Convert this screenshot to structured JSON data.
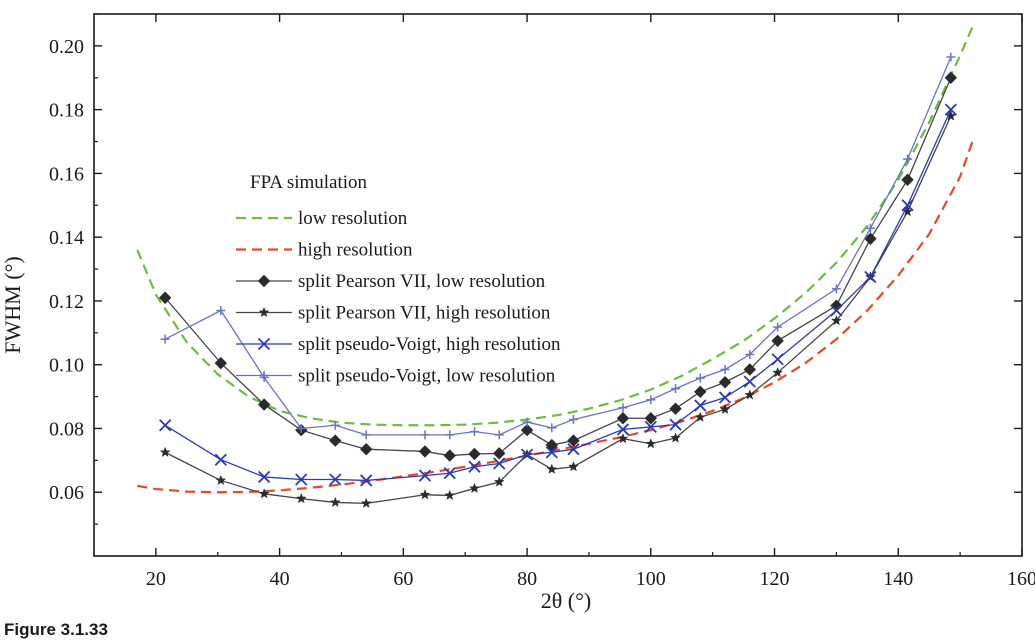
{
  "caption": "Figure 3.1.33",
  "chart_data": {
    "type": "line",
    "xlabel": "2θ (°)",
    "ylabel": "FWHM (°)",
    "xlim": [
      10,
      160
    ],
    "ylim": [
      0.04,
      0.21
    ],
    "xticks": [
      20,
      40,
      60,
      80,
      100,
      120,
      140,
      160
    ],
    "yticks": [
      0.06,
      0.08,
      0.1,
      0.12,
      0.14,
      0.16,
      0.18,
      0.2
    ],
    "ytick_labels": [
      "0.06",
      "0.08",
      "0.10",
      "0.12",
      "0.14",
      "0.16",
      "0.18",
      "0.20"
    ],
    "grid": false,
    "legend_title": "FPA simulation",
    "legend_position": "top-left",
    "series": [
      {
        "name": "low resolution",
        "style": "dashed",
        "color": "#6dbb3f",
        "marker": "none",
        "x": [
          17,
          20,
          25,
          30,
          35,
          40,
          45,
          50,
          55,
          60,
          65,
          70,
          75,
          80,
          85,
          90,
          95,
          100,
          105,
          110,
          115,
          120,
          125,
          130,
          135,
          140,
          145,
          150,
          152
        ],
        "y": [
          0.136,
          0.122,
          0.107,
          0.097,
          0.09,
          0.0855,
          0.0832,
          0.0818,
          0.0812,
          0.081,
          0.081,
          0.0812,
          0.0818,
          0.0828,
          0.0842,
          0.0862,
          0.0888,
          0.0922,
          0.0965,
          0.1018,
          0.1075,
          0.1145,
          0.1225,
          0.132,
          0.1435,
          0.158,
          0.176,
          0.197,
          0.206
        ]
      },
      {
        "name": "high resolution",
        "style": "dashed",
        "color": "#e8472b",
        "marker": "none",
        "x": [
          17,
          20,
          25,
          30,
          35,
          40,
          45,
          50,
          55,
          60,
          65,
          70,
          75,
          80,
          85,
          90,
          95,
          100,
          105,
          110,
          115,
          120,
          125,
          130,
          135,
          140,
          145,
          150,
          152
        ],
        "y": [
          0.062,
          0.061,
          0.0602,
          0.06,
          0.0601,
          0.0606,
          0.0614,
          0.0624,
          0.0636,
          0.065,
          0.0664,
          0.068,
          0.0697,
          0.0715,
          0.0733,
          0.0752,
          0.0772,
          0.0795,
          0.0822,
          0.0855,
          0.0895,
          0.0945,
          0.1005,
          0.108,
          0.117,
          0.128,
          0.141,
          0.159,
          0.17
        ]
      },
      {
        "name": "split Pearson VII, low resolution",
        "style": "solid",
        "color": "#444444",
        "marker": "diamond",
        "x": [
          21.5,
          30.5,
          37.5,
          43.5,
          49,
          54,
          63.5,
          67.5,
          71.5,
          75.5,
          80,
          84,
          87.5,
          95.5,
          100,
          104,
          108,
          112,
          116,
          120.5,
          130,
          135.5,
          141.5,
          148.5
        ],
        "y": [
          0.121,
          0.1005,
          0.0875,
          0.0795,
          0.0762,
          0.0735,
          0.0728,
          0.0715,
          0.072,
          0.0722,
          0.0795,
          0.0748,
          0.0762,
          0.0832,
          0.0832,
          0.0862,
          0.0915,
          0.0945,
          0.0985,
          0.1075,
          0.1185,
          0.1395,
          0.158,
          0.19
        ]
      },
      {
        "name": "split Pearson VII, high resolution",
        "style": "solid",
        "color": "#444444",
        "marker": "star",
        "x": [
          21.5,
          30.5,
          37.5,
          43.5,
          49,
          54,
          63.5,
          67.5,
          71.5,
          75.5,
          80,
          84,
          87.5,
          95.5,
          100,
          104,
          108,
          112,
          116,
          120.5,
          130,
          135.5,
          141.5,
          148.5
        ],
        "y": [
          0.0725,
          0.0637,
          0.0595,
          0.058,
          0.0568,
          0.0565,
          0.0592,
          0.059,
          0.0612,
          0.0632,
          0.0718,
          0.0672,
          0.068,
          0.0768,
          0.0752,
          0.077,
          0.0835,
          0.086,
          0.0905,
          0.0975,
          0.1138,
          0.1275,
          0.148,
          0.178
        ]
      },
      {
        "name": "split pseudo-Voigt, high resolution",
        "style": "solid",
        "color": "#2b3bb5",
        "marker": "x",
        "x": [
          21.5,
          30.5,
          37.5,
          43.5,
          49,
          54,
          63.5,
          67.5,
          71.5,
          75.5,
          80,
          84,
          87.5,
          95.5,
          100,
          104,
          108,
          112,
          116,
          120.5,
          130,
          135.5,
          141.5,
          148.5
        ],
        "y": [
          0.081,
          0.0702,
          0.0648,
          0.064,
          0.064,
          0.0637,
          0.0652,
          0.066,
          0.068,
          0.069,
          0.0718,
          0.0725,
          0.0735,
          0.0797,
          0.0805,
          0.0812,
          0.0872,
          0.0897,
          0.0947,
          0.1017,
          0.117,
          0.1275,
          0.15,
          0.18
        ]
      },
      {
        "name": "split pseudo-Voigt, low resolution",
        "style": "solid",
        "color": "#6a72c9",
        "marker": "plus",
        "x": [
          21.5,
          30.5,
          37.5,
          43.5,
          49,
          54,
          63.5,
          67.5,
          71.5,
          75.5,
          80,
          84,
          87.5,
          95.5,
          100,
          104,
          108,
          112,
          116,
          120.5,
          130,
          135.5,
          141.5,
          148.5
        ],
        "y": [
          0.108,
          0.117,
          0.096,
          0.08,
          0.081,
          0.078,
          0.078,
          0.078,
          0.079,
          0.078,
          0.082,
          0.0802,
          0.0828,
          0.0865,
          0.089,
          0.0925,
          0.0958,
          0.0985,
          0.1032,
          0.1118,
          0.1238,
          0.1428,
          0.1645,
          0.1965
        ]
      }
    ]
  }
}
